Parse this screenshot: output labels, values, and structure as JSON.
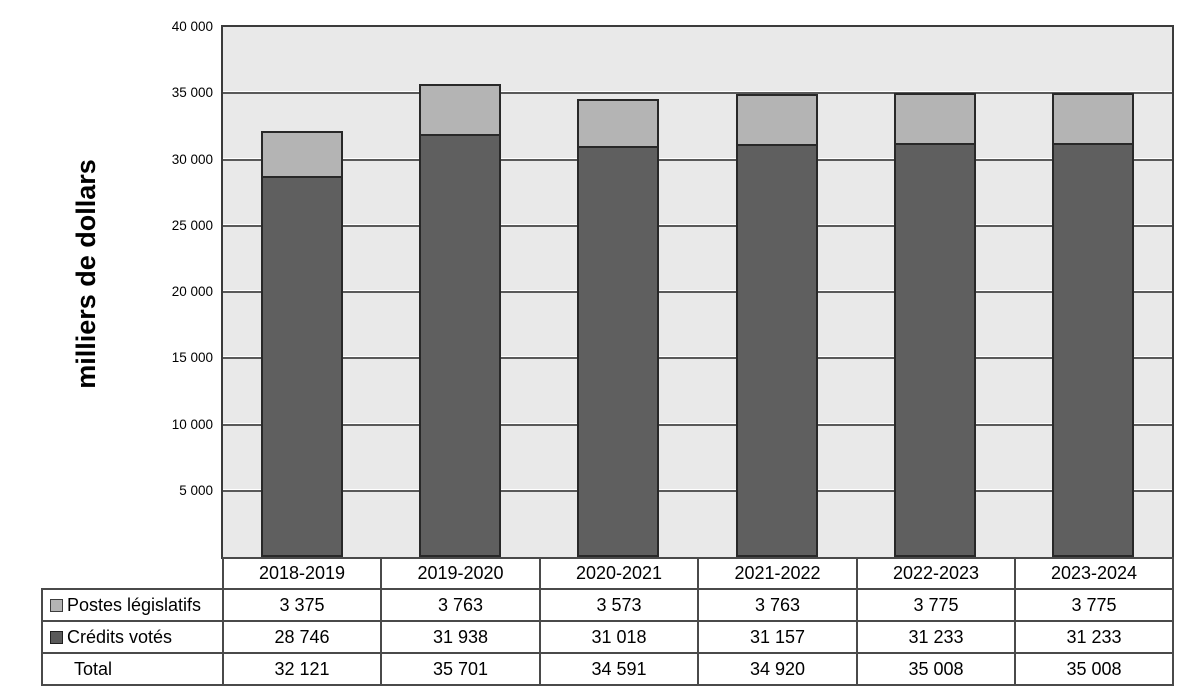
{
  "chart": {
    "y_axis_title": "milliers de dollars",
    "y_tick_labels": [
      "40 000",
      "35 000",
      "30 000",
      "25 000",
      "20 000",
      "15 000",
      "10 000",
      "5 000"
    ],
    "y_tick_values": [
      40000,
      35000,
      30000,
      25000,
      20000,
      15000,
      10000,
      5000
    ]
  },
  "chart_data": {
    "type": "bar",
    "stacked": true,
    "title": "",
    "xlabel": "",
    "ylabel": "milliers de dollars",
    "ylim": [
      0,
      40000
    ],
    "grid": true,
    "gridline_step": 5000,
    "legend_position": "table-left",
    "categories": [
      "2018-2019",
      "2019-2020",
      "2020-2021",
      "2021-2022",
      "2022-2023",
      "2023-2024"
    ],
    "series": [
      {
        "name": "Crédits votés",
        "color": "#5f5f5f",
        "values": [
          28746,
          31938,
          31018,
          31157,
          31233,
          31233
        ]
      },
      {
        "name": "Postes législatifs",
        "color": "#b4b4b4",
        "values": [
          3375,
          3763,
          3573,
          3763,
          3775,
          3775
        ]
      }
    ],
    "totals": [
      32121,
      35701,
      34591,
      34920,
      35008,
      35008
    ],
    "plot_background": "#e9e9e9",
    "bar_border_color": "#282828"
  },
  "table": {
    "header": [
      "2018-2019",
      "2019-2020",
      "2020-2021",
      "2021-2022",
      "2022-2023",
      "2023-2024"
    ],
    "rows": [
      {
        "label": "Postes législatifs",
        "swatch": "light",
        "values": [
          "3 375",
          "3 763",
          "3 573",
          "3 763",
          "3 775",
          "3 775"
        ]
      },
      {
        "label": "Crédits votés",
        "swatch": "dark",
        "values": [
          "28 746",
          "31 938",
          "31 018",
          "31 157",
          "31 233",
          "31 233"
        ]
      },
      {
        "label": "Total",
        "swatch": null,
        "values": [
          "32 121",
          "35 701",
          "34 591",
          "34 920",
          "35 008",
          "35 008"
        ]
      }
    ]
  },
  "colors": {
    "plot_bg": "#e9e9e9",
    "series_dark": "#5f5f5f",
    "series_light": "#b4b4b4",
    "gridline": "#595959",
    "border": "#4a4a4a",
    "text": "#000000"
  }
}
